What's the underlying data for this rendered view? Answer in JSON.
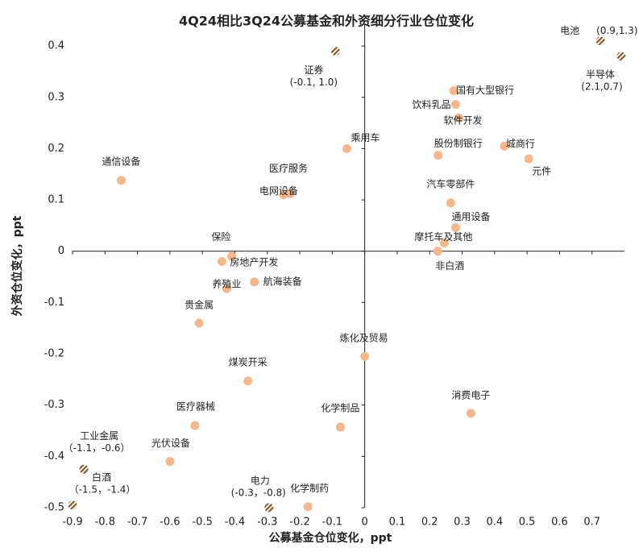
{
  "chart_data": {
    "type": "scatter",
    "title": "4Q24相比3Q24公募基金和外资细分行业仓位变化",
    "xlabel": "公募基金仓位变化，ppt",
    "ylabel": "外资仓位变化，ppt",
    "xlim": [
      -0.9,
      0.8
    ],
    "ylim": [
      -0.5,
      0.43
    ],
    "xticks": [
      -0.9,
      -0.8,
      -0.7,
      -0.6,
      -0.5,
      -0.4,
      -0.3,
      -0.2,
      -0.1,
      0,
      0.1,
      0.2,
      0.3,
      0.4,
      0.5,
      0.6,
      0.7
    ],
    "yticks": [
      -0.5,
      -0.4,
      -0.3,
      -0.2,
      -0.1,
      0,
      0.1,
      0.2,
      0.3,
      0.4
    ],
    "series": [
      {
        "color": "#f5b88c",
        "labels": [
          "国有大型银行",
          "饮料乳品",
          "软件开发",
          "乘用车",
          "股份制银行",
          "城商行",
          "元件",
          "通信设备",
          "医疗服务",
          "电网设备",
          "汽车零部件",
          "通用设备",
          "摩托车及其他",
          "非白酒",
          "保险",
          "房地产开发",
          "养殖业",
          "航海装备",
          "贵金属",
          "炼化及贸易",
          "煤炭开采",
          "消费电子",
          "医疗器械",
          "化学制品",
          "光伏设备",
          "化学制药"
        ],
        "x": [
          0.274,
          0.28,
          0.29,
          -0.055,
          0.226,
          0.43,
          0.505,
          -0.75,
          -0.23,
          -0.25,
          0.265,
          0.28,
          0.245,
          0.225,
          -0.44,
          -0.41,
          -0.425,
          -0.34,
          -0.51,
          0.0,
          -0.36,
          0.327,
          -0.523,
          -0.075,
          -0.6,
          -0.175
        ],
        "values": [
          0.313,
          0.286,
          0.26,
          0.2,
          0.187,
          0.205,
          0.18,
          0.138,
          0.112,
          0.11,
          0.094,
          0.046,
          0.016,
          0.0,
          -0.02,
          -0.01,
          -0.073,
          -0.06,
          -0.14,
          -0.205,
          -0.253,
          -0.316,
          -0.34,
          -0.343,
          -0.41,
          -0.498
        ]
      },
      {
        "color": "#8b5a2b",
        "labels": [
          "电池",
          "半导体",
          "证券",
          "工业金属",
          "白酒",
          "电力"
        ],
        "notes": [
          "(0.9,1.3)",
          "(2.1,0.7)",
          "(-0.1, 1.0)",
          "（-1.1，-0.6）",
          "（-1.5，-1.4）",
          "(-0.3，-0.8)"
        ],
        "x": [
          0.726,
          0.79,
          -0.09,
          -0.865,
          -0.9,
          -0.295
        ],
        "values": [
          0.41,
          0.38,
          0.39,
          -0.425,
          -0.495,
          -0.5
        ]
      }
    ]
  }
}
